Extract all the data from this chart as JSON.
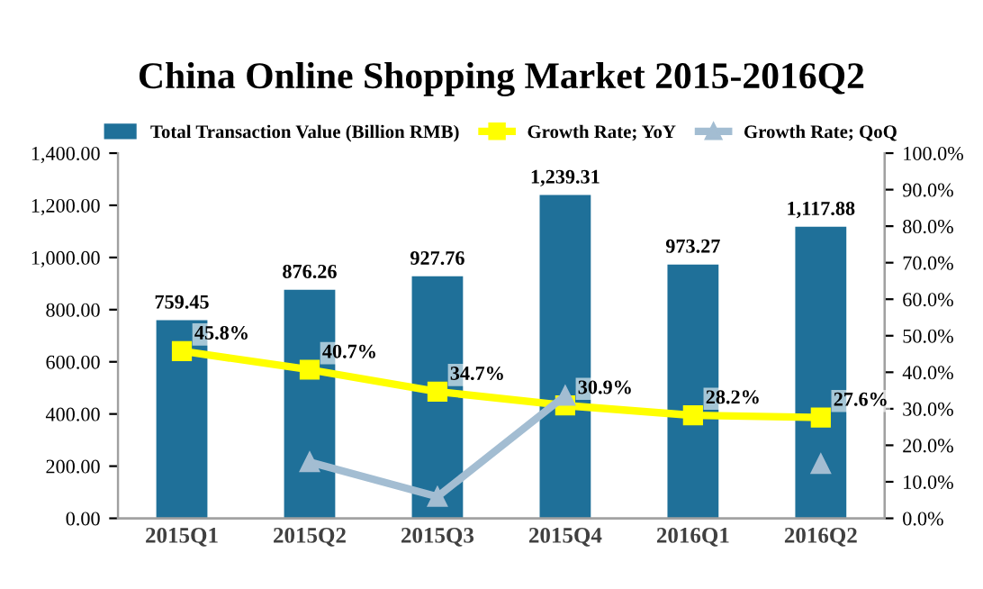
{
  "chart_data": {
    "type": "bar",
    "title": "China Online Shopping Market 2015-2016Q2",
    "categories": [
      "2015Q1",
      "2015Q2",
      "2015Q3",
      "2015Q4",
      "2016Q1",
      "2016Q2"
    ],
    "series": [
      {
        "name": "Total Transaction Value (Billion RMB)",
        "color": "#1f7099",
        "values": [
          759.45,
          876.26,
          927.76,
          1239.31,
          973.27,
          1117.88
        ],
        "value_labels": [
          "759.45",
          "876.26",
          "927.76",
          "1,239.31",
          "973.27",
          "1,117.88"
        ]
      },
      {
        "name": "Growth Rate; YoY",
        "type": "line",
        "axis": "y2",
        "color": "#ffff00",
        "marker": "square",
        "values": [
          45.8,
          40.7,
          34.7,
          30.9,
          28.2,
          27.6
        ],
        "value_labels": [
          "45.8%",
          "40.7%",
          "34.7%",
          "30.9%",
          "28.2%",
          "27.6%"
        ]
      },
      {
        "name": "Growth Rate; QoQ",
        "type": "line",
        "axis": "y2",
        "color": "#a3bdd2",
        "marker": "triangle",
        "values": [
          null,
          15.4,
          5.9,
          33.6,
          null,
          14.9
        ]
      }
    ],
    "ylim": [
      0,
      1400
    ],
    "yticks": [
      {
        "value": 0,
        "label": "0.00"
      },
      {
        "value": 200,
        "label": "200.00"
      },
      {
        "value": 400,
        "label": "400.00"
      },
      {
        "value": 600,
        "label": "600.00"
      },
      {
        "value": 800,
        "label": "800.00"
      },
      {
        "value": 1000,
        "label": "1,000.00"
      },
      {
        "value": 1200,
        "label": "1,200.00"
      },
      {
        "value": 1400,
        "label": "1,400.00"
      }
    ],
    "y2lim": [
      0,
      100
    ],
    "y2ticks": [
      {
        "value": 0,
        "label": "0.0%"
      },
      {
        "value": 10,
        "label": "10.0%"
      },
      {
        "value": 20,
        "label": "20.0%"
      },
      {
        "value": 30,
        "label": "30.0%"
      },
      {
        "value": 40,
        "label": "40.0%"
      },
      {
        "value": 50,
        "label": "50.0%"
      },
      {
        "value": 60,
        "label": "60.0%"
      },
      {
        "value": 70,
        "label": "70.0%"
      },
      {
        "value": 80,
        "label": "80.0%"
      },
      {
        "value": 90,
        "label": "90.0%"
      },
      {
        "value": 100,
        "label": "100.0%"
      }
    ],
    "legend": "top",
    "grid": false
  }
}
